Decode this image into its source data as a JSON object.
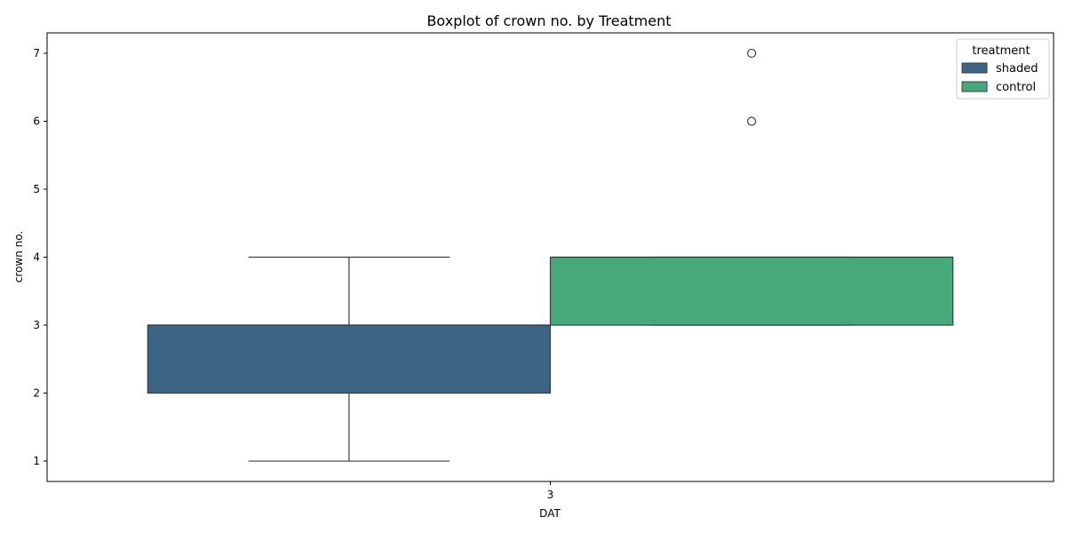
{
  "chart_data": {
    "type": "box",
    "title": "Boxplot of crown no. by Treatment",
    "xlabel": "DAT",
    "ylabel": "crown no.",
    "categories": [
      "3"
    ],
    "ylim": [
      0.7,
      7.3
    ],
    "yticks": [
      1,
      2,
      3,
      4,
      5,
      6,
      7
    ],
    "grid": false,
    "legend": {
      "title": "treatment",
      "placement": "top-right"
    },
    "series": [
      {
        "name": "shaded",
        "color": "#3b6583",
        "boxes": [
          {
            "category": "3",
            "whisker_low": 1,
            "q1": 2,
            "median": 3,
            "q3": 3,
            "whisker_high": 4,
            "outliers": []
          }
        ]
      },
      {
        "name": "control",
        "color": "#47a97a",
        "boxes": [
          {
            "category": "3",
            "whisker_low": 3,
            "q1": 3,
            "median": 4,
            "q3": 4,
            "whisker_high": 4,
            "outliers": [
              6,
              7
            ]
          }
        ]
      }
    ]
  }
}
